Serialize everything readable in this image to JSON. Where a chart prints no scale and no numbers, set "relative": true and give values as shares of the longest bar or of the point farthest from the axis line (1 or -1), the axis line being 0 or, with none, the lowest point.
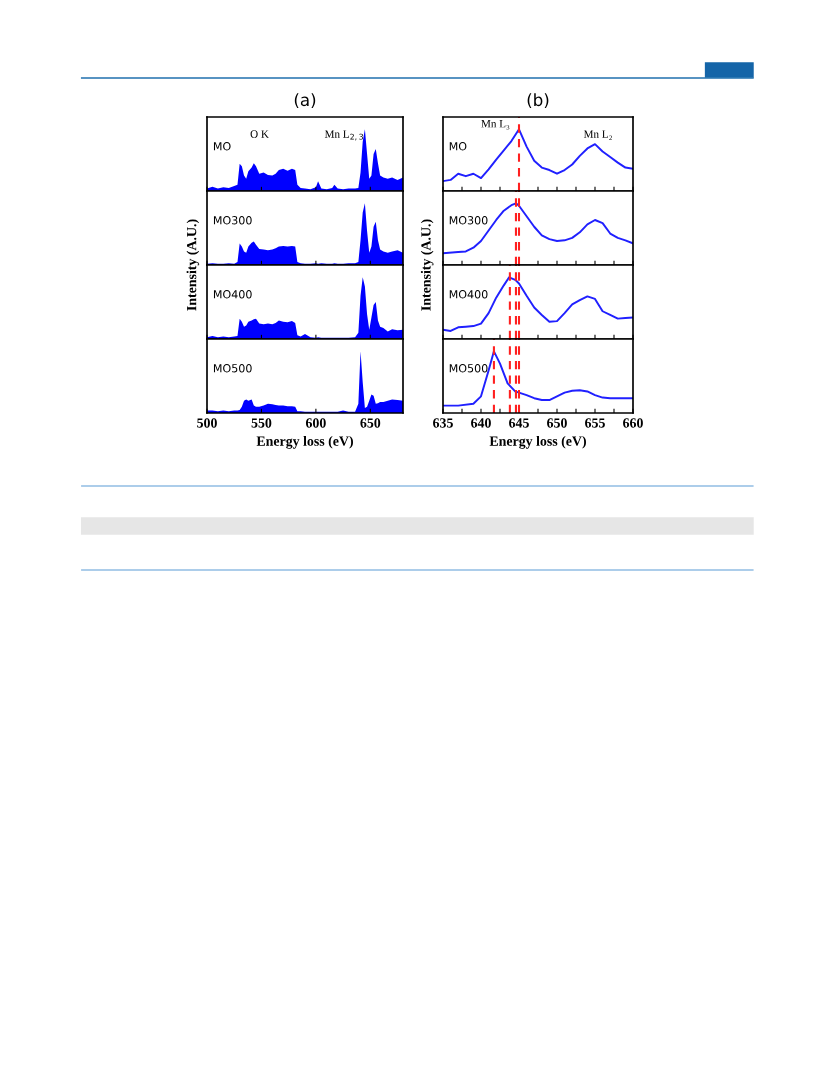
{
  "chart_data": [
    {
      "type": "area",
      "title": "(a)",
      "relative": true,
      "xlim": [
        500,
        680
      ],
      "xticks": [
        500,
        550,
        600,
        650
      ],
      "tick_labels": false,
      "x": [
        500,
        505,
        510,
        515,
        520,
        525,
        528,
        530,
        532,
        534,
        536,
        538,
        541,
        543,
        545,
        548,
        552,
        556,
        560,
        563,
        566,
        570,
        574,
        578,
        581,
        583,
        586,
        590,
        595,
        600,
        602,
        605,
        610,
        615,
        617,
        620,
        625,
        630,
        636,
        639,
        641,
        643,
        645,
        647,
        649,
        651,
        653,
        655,
        657,
        659,
        662,
        666,
        670,
        675,
        680
      ],
      "series": [
        {
          "color": "#0000ff",
          "values": [
            0.04,
            0.07,
            0.04,
            0.06,
            0.05,
            0.08,
            0.1,
            0.44,
            0.4,
            0.25,
            0.2,
            0.32,
            0.38,
            0.45,
            0.4,
            0.28,
            0.3,
            0.26,
            0.25,
            0.28,
            0.34,
            0.36,
            0.33,
            0.36,
            0.34,
            0.1,
            0.05,
            0.04,
            0.03,
            0.06,
            0.16,
            0.04,
            0.03,
            0.05,
            0.1,
            0.04,
            0.03,
            0.04,
            0.04,
            0.05,
            0.3,
            0.8,
            1.0,
            0.6,
            0.2,
            0.25,
            0.6,
            0.68,
            0.45,
            0.25,
            0.22,
            0.2,
            0.22,
            0.18,
            0.22
          ]
        }
      ],
      "annotations": [
        "MO",
        "O K",
        "Mn L$_{2,3}$"
      ]
    },
    {
      "type": "area",
      "relative": true,
      "ylabel": "Intensity (A.U.)",
      "xlim": [
        500,
        680
      ],
      "xticks": [
        500,
        550,
        600,
        650
      ],
      "tick_labels": false,
      "x": [
        500,
        505,
        510,
        515,
        520,
        525,
        528,
        530,
        532,
        534,
        536,
        538,
        541,
        543,
        545,
        548,
        552,
        556,
        560,
        563,
        566,
        570,
        574,
        578,
        581,
        583,
        586,
        590,
        595,
        600,
        602,
        605,
        610,
        615,
        617,
        620,
        625,
        630,
        636,
        639,
        641,
        643,
        645,
        647,
        649,
        651,
        653,
        655,
        657,
        659,
        662,
        666,
        670,
        675,
        680
      ],
      "series": [
        {
          "color": "#0000ff",
          "values": [
            0.02,
            0.03,
            0.02,
            0.02,
            0.03,
            0.02,
            0.05,
            0.35,
            0.3,
            0.22,
            0.2,
            0.3,
            0.36,
            0.38,
            0.33,
            0.26,
            0.25,
            0.24,
            0.25,
            0.27,
            0.3,
            0.31,
            0.3,
            0.31,
            0.3,
            0.05,
            0.03,
            0.02,
            0.02,
            0.03,
            0.02,
            0.03,
            0.02,
            0.02,
            0.03,
            0.02,
            0.02,
            0.03,
            0.03,
            0.05,
            0.4,
            0.85,
            1.0,
            0.55,
            0.2,
            0.3,
            0.62,
            0.7,
            0.4,
            0.25,
            0.22,
            0.2,
            0.22,
            0.24,
            0.2
          ]
        }
      ],
      "annotations": [
        "MO300"
      ]
    },
    {
      "type": "area",
      "relative": true,
      "xlim": [
        500,
        680
      ],
      "xticks": [
        500,
        550,
        600,
        650
      ],
      "tick_labels": false,
      "x": [
        500,
        505,
        510,
        515,
        520,
        525,
        528,
        530,
        532,
        534,
        536,
        538,
        541,
        543,
        545,
        548,
        552,
        556,
        560,
        563,
        566,
        570,
        574,
        578,
        581,
        583,
        586,
        590,
        595,
        600,
        602,
        605,
        610,
        615,
        617,
        620,
        625,
        630,
        636,
        639,
        641,
        643,
        645,
        647,
        649,
        651,
        653,
        655,
        657,
        659,
        662,
        666,
        670,
        675,
        680
      ],
      "series": [
        {
          "color": "#0000ff",
          "values": [
            0.03,
            0.05,
            0.03,
            0.04,
            0.03,
            0.04,
            0.05,
            0.33,
            0.28,
            0.2,
            0.22,
            0.28,
            0.3,
            0.32,
            0.33,
            0.25,
            0.24,
            0.25,
            0.24,
            0.26,
            0.3,
            0.28,
            0.27,
            0.29,
            0.26,
            0.06,
            0.04,
            0.08,
            0.03,
            0.02,
            0.03,
            0.02,
            0.02,
            0.02,
            0.02,
            0.02,
            0.02,
            0.02,
            0.03,
            0.1,
            0.7,
            1.0,
            0.85,
            0.4,
            0.15,
            0.35,
            0.55,
            0.6,
            0.3,
            0.2,
            0.18,
            0.12,
            0.16,
            0.14,
            0.15
          ]
        }
      ],
      "annotations": [
        "MO400"
      ]
    },
    {
      "type": "area",
      "relative": true,
      "xlabel": "Energy loss (eV)",
      "xlim": [
        500,
        680
      ],
      "xticks": [
        500,
        550,
        600,
        650
      ],
      "tick_labels": "x",
      "x": [
        500,
        505,
        510,
        515,
        520,
        525,
        528,
        530,
        532,
        534,
        536,
        538,
        541,
        543,
        545,
        548,
        552,
        556,
        560,
        563,
        566,
        570,
        574,
        578,
        581,
        583,
        586,
        590,
        595,
        600,
        602,
        605,
        610,
        615,
        617,
        620,
        625,
        630,
        636,
        639,
        641,
        643,
        645,
        647,
        649,
        651,
        653,
        655,
        657,
        659,
        662,
        666,
        670,
        675,
        680
      ],
      "series": [
        {
          "color": "#0000ff",
          "values": [
            0.04,
            0.04,
            0.03,
            0.04,
            0.03,
            0.04,
            0.04,
            0.05,
            0.1,
            0.2,
            0.22,
            0.2,
            0.22,
            0.12,
            0.1,
            0.1,
            0.12,
            0.15,
            0.14,
            0.13,
            0.12,
            0.12,
            0.11,
            0.11,
            0.1,
            0.03,
            0.03,
            0.02,
            0.02,
            0.02,
            0.02,
            0.02,
            0.02,
            0.02,
            0.02,
            0.02,
            0.04,
            0.02,
            0.02,
            0.15,
            1.0,
            0.5,
            0.08,
            0.1,
            0.2,
            0.3,
            0.28,
            0.15,
            0.16,
            0.18,
            0.18,
            0.2,
            0.22,
            0.21,
            0.2
          ]
        }
      ],
      "annotations": [
        "MO500"
      ]
    },
    {
      "type": "line",
      "title": "(b)",
      "relative": true,
      "xlim": [
        635,
        660
      ],
      "tick_labels": false,
      "xticks": [
        635,
        {
          "value": 637.5,
          "label": null
        },
        640,
        {
          "value": 642.5,
          "label": null
        },
        645,
        {
          "value": 647.5,
          "label": null
        },
        650,
        {
          "value": 652.5,
          "label": null
        },
        655,
        {
          "value": 657.5,
          "label": null
        },
        660
      ],
      "x": [
        635,
        636,
        637,
        638,
        639,
        640,
        641,
        642,
        643,
        644,
        645,
        646,
        647,
        648,
        649,
        650,
        651,
        652,
        653,
        654,
        655,
        656,
        657,
        658,
        659,
        660
      ],
      "series": [
        {
          "color": "#2020ff",
          "values": [
            0.16,
            0.18,
            0.28,
            0.24,
            0.28,
            0.21,
            0.35,
            0.51,
            0.66,
            0.81,
            1.0,
            0.72,
            0.49,
            0.38,
            0.34,
            0.28,
            0.34,
            0.43,
            0.57,
            0.69,
            0.76,
            0.64,
            0.55,
            0.46,
            0.38,
            0.36
          ]
        }
      ],
      "ref_lines": [
        {
          "axis": "x",
          "value": 645.0,
          "color": "#ff2020",
          "line_style": "dashed"
        }
      ],
      "annotations": [
        "MO",
        "Mn L₃",
        "Mn L₂"
      ]
    },
    {
      "type": "line",
      "relative": true,
      "ylabel": "Intensity (A.U.)",
      "xlim": [
        635,
        660
      ],
      "tick_labels": false,
      "xticks": [
        635,
        {
          "value": 637.5,
          "label": null
        },
        640,
        {
          "value": 642.5,
          "label": null
        },
        645,
        {
          "value": 647.5,
          "label": null
        },
        650,
        {
          "value": 652.5,
          "label": null
        },
        655,
        {
          "value": 657.5,
          "label": null
        },
        660
      ],
      "x": [
        635,
        637,
        638,
        639,
        640,
        641,
        642,
        643,
        644,
        644.6,
        645,
        646,
        647,
        648,
        649,
        650,
        651,
        652,
        653,
        654,
        655,
        656,
        657,
        658,
        659,
        660
      ],
      "series": [
        {
          "color": "#2020ff",
          "values": [
            0.19,
            0.21,
            0.22,
            0.28,
            0.39,
            0.56,
            0.73,
            0.88,
            0.97,
            1.0,
            0.96,
            0.79,
            0.62,
            0.48,
            0.42,
            0.39,
            0.4,
            0.44,
            0.53,
            0.66,
            0.73,
            0.68,
            0.51,
            0.44,
            0.4,
            0.35
          ]
        }
      ],
      "ref_lines": [
        {
          "axis": "x",
          "value": 644.6,
          "color": "#ff2020",
          "line_style": "dashed"
        },
        {
          "axis": "x",
          "value": 645.0,
          "color": "#ff2020",
          "line_style": "dashed"
        }
      ],
      "annotations": [
        "MO300"
      ]
    },
    {
      "type": "line",
      "relative": true,
      "xlim": [
        635,
        660
      ],
      "tick_labels": false,
      "xticks": [
        635,
        {
          "value": 637.5,
          "label": null
        },
        640,
        {
          "value": 642.5,
          "label": null
        },
        645,
        {
          "value": 647.5,
          "label": null
        },
        650,
        {
          "value": 652.5,
          "label": null
        },
        655,
        {
          "value": 657.5,
          "label": null
        },
        660
      ],
      "x": [
        635,
        636,
        637,
        638,
        639,
        640,
        641,
        642,
        643,
        643.7,
        644.5,
        645,
        646,
        647,
        648,
        649,
        650,
        651,
        652,
        653,
        654,
        655,
        656,
        657,
        658,
        659,
        660
      ],
      "series": [
        {
          "color": "#2020ff",
          "values": [
            0.15,
            0.13,
            0.19,
            0.2,
            0.21,
            0.25,
            0.42,
            0.67,
            0.87,
            1.0,
            0.96,
            0.9,
            0.7,
            0.51,
            0.39,
            0.28,
            0.29,
            0.42,
            0.56,
            0.63,
            0.69,
            0.65,
            0.45,
            0.39,
            0.33,
            0.34,
            0.35
          ]
        }
      ],
      "ref_lines": [
        {
          "axis": "x",
          "value": 643.8,
          "color": "#ff2020",
          "line_style": "dashed"
        },
        {
          "axis": "x",
          "value": 644.6,
          "color": "#ff2020",
          "line_style": "dashed"
        },
        {
          "axis": "x",
          "value": 645.0,
          "color": "#ff2020",
          "line_style": "dashed"
        }
      ],
      "annotations": [
        "MO400"
      ]
    },
    {
      "type": "line",
      "relative": true,
      "xlabel": "Energy loss (eV)",
      "xlim": [
        635,
        660
      ],
      "tick_labels": "x",
      "xticks": [
        635,
        {
          "value": 637.5,
          "label": null
        },
        640,
        {
          "value": 642.5,
          "label": null
        },
        645,
        {
          "value": 647.5,
          "label": null
        },
        650,
        {
          "value": 652.5,
          "label": null
        },
        655,
        {
          "value": 657.5,
          "label": null
        },
        660
      ],
      "x": [
        635,
        637,
        639,
        640,
        641,
        641.7,
        642.5,
        643.5,
        644.5,
        646,
        647,
        648,
        649,
        650,
        651,
        652,
        653,
        654,
        655,
        656,
        657,
        658,
        660
      ],
      "series": [
        {
          "color": "#2020ff",
          "values": [
            0.12,
            0.12,
            0.15,
            0.27,
            0.69,
            1.0,
            0.8,
            0.48,
            0.35,
            0.29,
            0.24,
            0.21,
            0.21,
            0.27,
            0.33,
            0.36,
            0.37,
            0.35,
            0.29,
            0.25,
            0.24,
            0.24,
            0.24
          ]
        }
      ],
      "ref_lines": [
        {
          "axis": "x",
          "value": 641.7,
          "color": "#ff2020",
          "line_style": "dashed"
        },
        {
          "axis": "x",
          "value": 643.8,
          "color": "#ff2020",
          "line_style": "dashed"
        },
        {
          "axis": "x",
          "value": 644.6,
          "color": "#ff2020",
          "line_style": "dashed"
        },
        {
          "axis": "x",
          "value": 645.0,
          "color": "#ff2020",
          "line_style": "dashed"
        }
      ],
      "annotations": [
        "MO500"
      ]
    }
  ]
}
